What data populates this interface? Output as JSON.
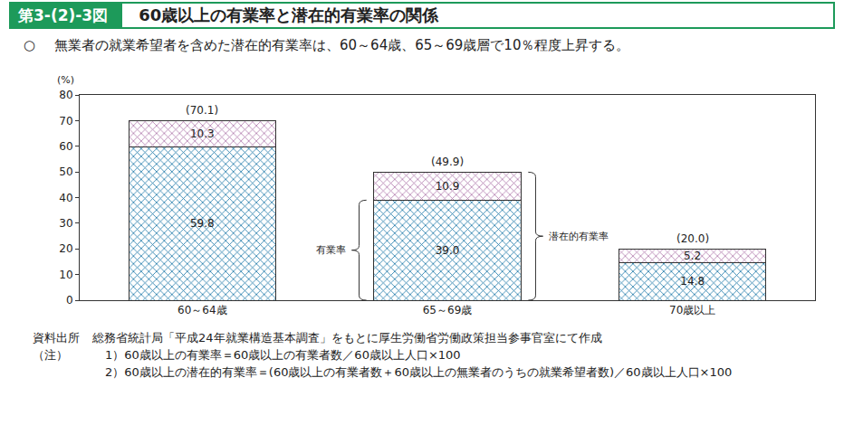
{
  "header": {
    "figure_number": "第3-(2)-3図",
    "title": "60歳以上の有業率と潜在的有業率の関係",
    "bullet": "○",
    "summary": "無業者の就業希望者を含めた潜在的有業率は、60～64歳、65～69歳層で10％程度上昇する。"
  },
  "chart_data": {
    "type": "bar",
    "stacked": true,
    "data_labels": true,
    "grid": false,
    "y_unit_label": "(%)",
    "categories": [
      "60～64歳",
      "65～69歳",
      "70歳以上"
    ],
    "series": [
      {
        "color": "#3aa6d2",
        "values": [
          59.8,
          39.0,
          14.8
        ],
        "value_labels": [
          "59.8",
          "39.0",
          "14.8"
        ]
      },
      {
        "color": "#f2d9ee",
        "values": [
          10.3,
          10.9,
          5.2
        ]
      }
    ],
    "totals": {
      "values": [
        70.1,
        49.9,
        20.0
      ],
      "value_labels": [
        "(70.1)",
        "(49.9)",
        "(20.0)"
      ]
    },
    "annotations": [
      {
        "text": "有業率",
        "category": "65～69歳"
      },
      {
        "text": "潜在的有業率",
        "category": "65～69歳"
      }
    ],
    "ylim": [
      0,
      80
    ],
    "yticks": [
      0,
      10,
      20,
      30,
      40,
      50,
      60,
      70,
      80
    ]
  },
  "footer": {
    "source_label": "資料出所",
    "source": "総務省統計局「平成24年就業構造基本調査」をもとに厚生労働省労働政策担当参事官室にて作成",
    "notes_label": "（注）",
    "notes": [
      "1）60歳以上の有業率＝60歳以上の有業者数／60歳以上人口×100",
      "2）60歳以上の潜在的有業率＝(60歳以上の有業者数＋60歳以上の無業者のうちの就業希望者数)／60歳以上人口×100"
    ]
  }
}
